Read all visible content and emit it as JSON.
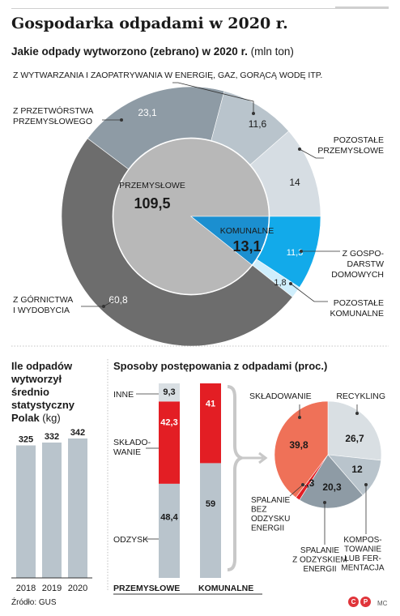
{
  "header": {
    "title": "Gospodarka odpadami w 2020 r.",
    "subtitle": "Jakie odpady wytworzono (zebrano) w 2020 r.",
    "subtitle_unit": "(mln ton)"
  },
  "chart_data": [
    {
      "type": "pie",
      "title": "Jakie odpady wytworzono (zebrano) w 2020 r. (mln ton)",
      "inner": {
        "slices": [
          {
            "label": "PRZEMYSŁOWE",
            "value": 109.5,
            "value_label": "109,5",
            "color": "#b8b8b8"
          },
          {
            "label": "KOMUNALNE",
            "value": 13.1,
            "value_label": "13,1",
            "color": "#1b8fd0"
          }
        ]
      },
      "outer": {
        "slices": [
          {
            "label": "Z WYTWARZANIA I ZAOPATRYWANIA W ENERGIĘ, GAZ, GORĄCĄ WODĘ ITP.",
            "value": 11.6,
            "value_label": "11,6",
            "color": "#b9c4cc"
          },
          {
            "label": "POZOSTAŁE PRZEMYSŁOWE",
            "value": 14,
            "value_label": "14",
            "color": "#d6dde3"
          },
          {
            "label": "Z GOSPO-DARSTW DOMOWYCH",
            "value": 11.3,
            "value_label": "11,3",
            "color": "#12aaea"
          },
          {
            "label": "POZOSTAŁE KOMUNALNE",
            "value": 1.8,
            "value_label": "1,8",
            "color": "#cfeefc"
          },
          {
            "label": "Z GÓRNICTWA I WYDOBYCIA",
            "value": 60.8,
            "value_label": "60,8",
            "color": "#6d6d6d"
          },
          {
            "label": "Z PRZETWÓRSTWA PRZEMYSŁOWEGO",
            "value": 23.1,
            "value_label": "23,1",
            "color": "#8e9ba5"
          }
        ]
      }
    },
    {
      "type": "bar",
      "title": "Ile odpadów wytworzył średnio statystyczny Polak",
      "unit": "(kg)",
      "categories": [
        "2018",
        "2019",
        "2020"
      ],
      "values": [
        325,
        332,
        342
      ],
      "value_labels": [
        "325",
        "332",
        "342"
      ],
      "color": "#b9c4cc"
    },
    {
      "type": "bar",
      "stacked": true,
      "title": "Sposoby postępowania z odpadami (proc.)",
      "categories": [
        "PRZEMYSŁOWE",
        "KOMUNALNE"
      ],
      "series": [
        {
          "name": "ODZYSK",
          "values": [
            48.4,
            59
          ],
          "value_labels": [
            "48,4",
            "59"
          ],
          "color": "#b9c4cc"
        },
        {
          "name": "SKŁADOWANIE",
          "values": [
            42.3,
            41
          ],
          "value_labels": [
            "42,3",
            "41"
          ],
          "color": "#e31e24"
        },
        {
          "name": "INNE",
          "values": [
            9.3,
            null
          ],
          "value_labels": [
            "9,3",
            ""
          ],
          "color": "#d9dfe3"
        }
      ]
    },
    {
      "type": "pie",
      "title": "KOMUNALNE (proc.)",
      "slices": [
        {
          "label": "RECYKLING",
          "value": 26.7,
          "value_label": "26,7",
          "color": "#d9dfe3"
        },
        {
          "label": "KOMPOS-TOWANIE LUB FER-MENTACJA",
          "value": 12,
          "value_label": "12",
          "color": "#b9c4cc"
        },
        {
          "label": "SPALANIE Z ODZYSKIEM ENERGII",
          "value": 20.3,
          "value_label": "20,3",
          "color": "#8e9ba5"
        },
        {
          "label": "SPALANIE BEZ ODZYSKU ENERGII",
          "value": 1.3,
          "value_label": "1,3",
          "color": "#e31e24"
        },
        {
          "label": "SKŁADOWANIE",
          "value": 39.8,
          "value_label": "39,8",
          "color": "#ef7158"
        }
      ]
    }
  ],
  "bar_section": {
    "heading_lines": [
      "Ile odpadów",
      "wytworzył",
      "średnio",
      "statystyczny",
      "Polak"
    ],
    "unit": "(kg)"
  },
  "methods_section": {
    "title": "Sposoby postępowania z odpadami (proc.)",
    "label_inne": "INNE",
    "label_skladowanie_lines": [
      "SKŁADO-",
      "WANIE"
    ],
    "label_odzysk": "ODZYSK",
    "bar_labels": [
      "PRZEMYSŁOWE",
      "KOMUNALNE"
    ]
  },
  "pie_labels": {
    "energy": "Z WYTWARZANIA I ZAOPATRYWANIA W ENERGIĘ, GAZ, GORĄCĄ WODĘ ITP.",
    "processing_lines": [
      "Z PRZETWÓRSTWA",
      "PRZEMYSŁOWEGO"
    ],
    "other_ind_lines": [
      "POZOSTAŁE",
      "PRZEMYSŁOWE"
    ],
    "households_lines": [
      "Z GOSPO-",
      "DARSTW",
      "DOMOWYCH"
    ],
    "other_mun_lines": [
      "POZOSTAŁE",
      "KOMUNALNE"
    ],
    "mining_lines": [
      "Z GÓRNICTWA",
      "I WYDOBYCIA"
    ],
    "industrial": "PRZEMYSŁOWE",
    "industrial_value": "109,5",
    "municipal": "KOMUNALNE",
    "municipal_value": "13,1"
  },
  "small_pie_labels": {
    "skladowanie": "SKŁADOWANIE",
    "recykling": "RECYKLING",
    "spalanie_bez_lines": [
      "SPALANIE",
      "BEZ",
      "ODZYSKU",
      "ENERGII"
    ],
    "spalanie_z_lines": [
      "SPALANIE",
      "Z ODZYSKIEM",
      "ENERGII"
    ],
    "kompost_lines": [
      "KOMPOS-",
      "TOWANIE",
      "LUB FER-",
      "MENTACJA"
    ]
  },
  "footer": {
    "source": "Źródło: GUS",
    "credit": "MC",
    "logo1": "C",
    "logo2": "P"
  },
  "colors": {
    "industrial_inner": "#b8b8b8",
    "municipal_inner": "#1b8fd0",
    "bar": "#b9c4cc",
    "red": "#e31e24",
    "salmon": "#ef7158"
  }
}
